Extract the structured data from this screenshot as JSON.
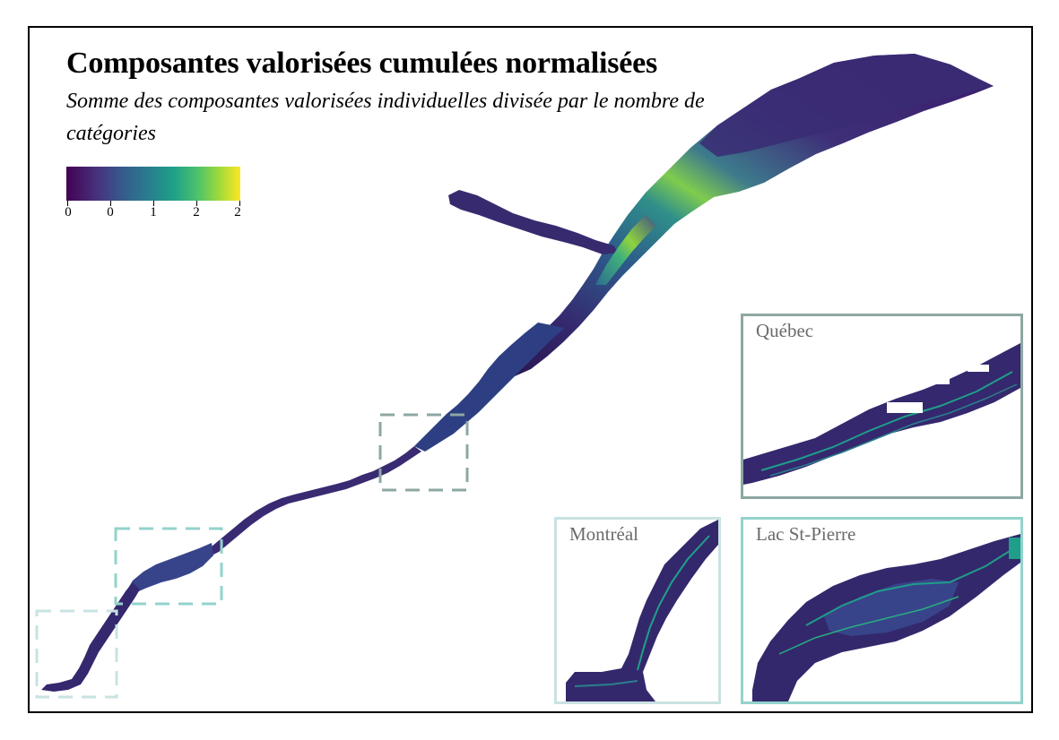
{
  "map": {
    "title": "Composantes valorisées cumulées normalisées",
    "subtitle": "Somme des composantes valorisées individuelles divisée par le nombre de catégories",
    "legend": {
      "type": "continuous-colorbar",
      "palette": [
        "#440154",
        "#46337e",
        "#365c8d",
        "#277f8e",
        "#1fa187",
        "#4ac16d",
        "#a0da39",
        "#fde725"
      ],
      "tick_labels": [
        "0",
        "0",
        "1",
        "2",
        "2"
      ]
    },
    "insets": [
      {
        "label": "Québec",
        "frame_color": "#8ea7a3"
      },
      {
        "label": "Montréal",
        "frame_color": "#c9e2e2"
      },
      {
        "label": "Lac St-Pierre",
        "frame_color": "#93d3cc"
      }
    ],
    "extent_box_colors": [
      "#8ea7a3",
      "#93d3cc",
      "#c9e2e2"
    ]
  }
}
